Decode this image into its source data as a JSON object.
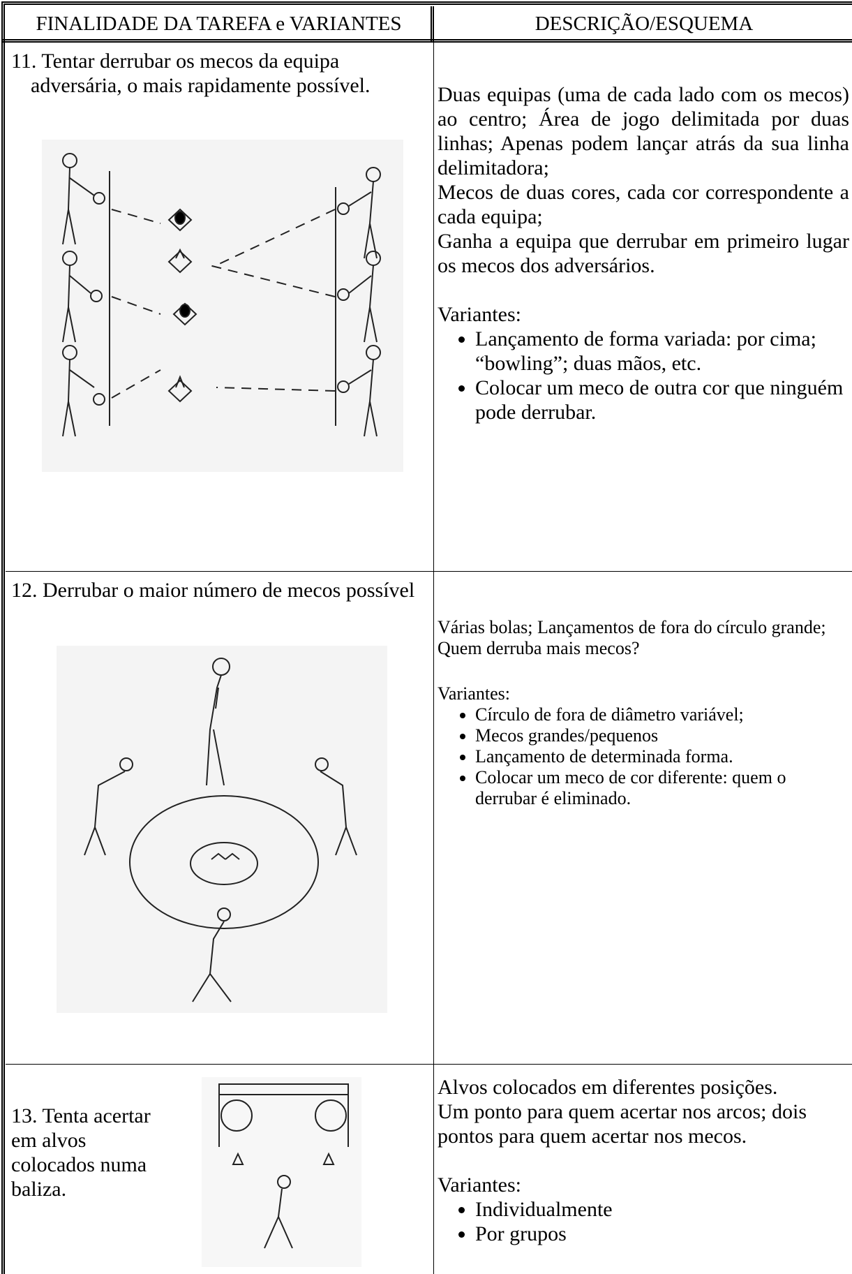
{
  "header": {
    "col1": "FINALIDADE DA TAREFA e VARIANTES",
    "col2": "DESCRIÇÃO/ESQUEMA"
  },
  "rows": [
    {
      "title": "11. Tentar derrubar os mecos da equipa adversária, o mais rapidamente possível.",
      "description": [
        "Duas equipas (uma de cada lado com os mecos) ao centro; Área de jogo delimitada por duas linhas; Apenas podem lançar atrás da sua linha delimitadora;",
        "Mecos de duas cores, cada cor correspondente a cada equipa;",
        "Ganha a equipa que derrubar em primeiro lugar os mecos dos adversários."
      ],
      "variants_label": "Variantes:",
      "variants": [
        "Lançamento de forma variada: por cima; “bowling”; duas mãos, etc.",
        "Colocar um meco de outra cor que ninguém pode derrubar."
      ]
    },
    {
      "title": "12. Derrubar o maior número de mecos possível",
      "description": [
        "Várias bolas; Lançamentos de fora do círculo grande;",
        "Quem derruba mais mecos?"
      ],
      "variants_label": "Variantes:",
      "variants": [
        "Círculo de fora de diâmetro variável;",
        "Mecos grandes/pequenos",
        "Lançamento de determinada forma.",
        "Colocar um meco de cor diferente: quem o derrubar é eliminado."
      ]
    },
    {
      "title": "13. Tenta acertar em alvos colocados numa baliza.",
      "description": [
        "Alvos colocados em diferentes posições.",
        "Um ponto para quem acertar nos arcos; dois pontos para quem acertar nos mecos."
      ],
      "variants_label": "Variantes:",
      "variants": [
        "Individualmente",
        "Por grupos"
      ]
    }
  ]
}
